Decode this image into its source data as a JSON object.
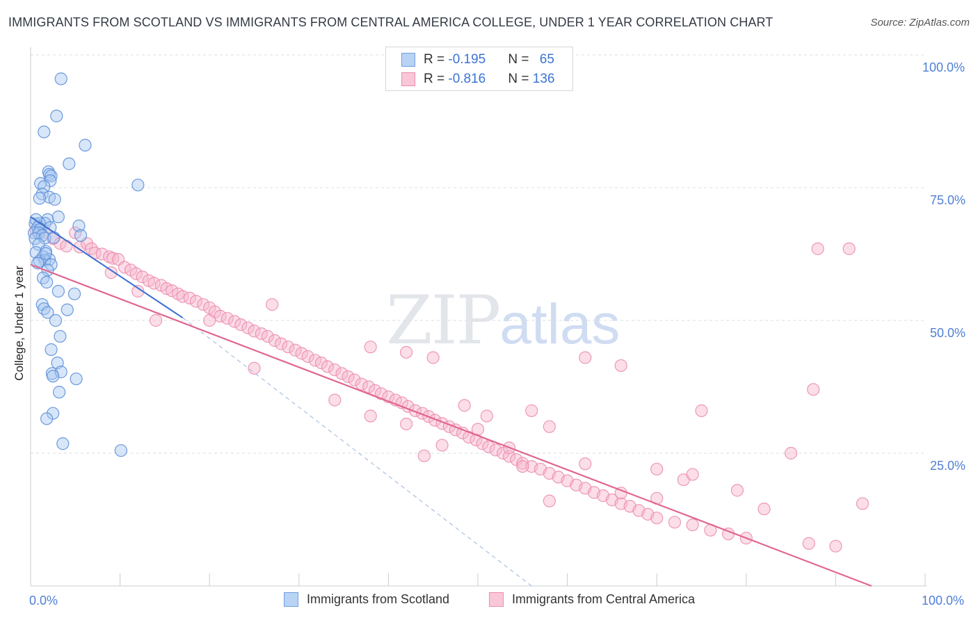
{
  "header": {
    "title": "IMMIGRANTS FROM SCOTLAND VS IMMIGRANTS FROM CENTRAL AMERICA COLLEGE, UNDER 1 YEAR CORRELATION CHART",
    "source": "Source: ZipAtlas.com"
  },
  "watermark": {
    "zip": "ZIP",
    "atlas": "atlas"
  },
  "legend": {
    "rows": [
      {
        "r_label": "R = ",
        "r_value": "-0.195",
        "n_label": "N = ",
        "n_value": "65",
        "color": "#6e9fe0"
      },
      {
        "r_label": "R = ",
        "r_value": "-0.816",
        "n_label": "N = ",
        "n_value": "136",
        "color": "#ec8db0"
      }
    ]
  },
  "bottom_legend": {
    "scotland": "Immigrants from Scotland",
    "central_america": "Immigrants from Central America"
  },
  "axes": {
    "ylabel": "College, Under 1 year",
    "x_left": "0.0%",
    "x_right": "100.0%",
    "y_ticks": [
      "100.0%",
      "75.0%",
      "50.0%",
      "25.0%"
    ]
  },
  "chart_data": {
    "type": "scatter",
    "xlabel": "",
    "ylabel": "College, Under 1 year",
    "xlim": [
      0,
      100
    ],
    "ylim": [
      0,
      100
    ],
    "grid": true,
    "series": [
      {
        "name": "Immigrants from Scotland",
        "color": "#6e9fe0",
        "trend": {
          "x": [
            0,
            17
          ],
          "y": [
            69.5,
            50.5
          ],
          "dashed_to": [
            56,
            0
          ]
        },
        "points": [
          [
            3.4,
            95.5
          ],
          [
            2.9,
            88.5
          ],
          [
            1.5,
            85.5
          ],
          [
            6.1,
            83.0
          ],
          [
            4.3,
            79.5
          ],
          [
            2.0,
            78.0
          ],
          [
            2.1,
            77.5
          ],
          [
            2.3,
            77.2
          ],
          [
            2.2,
            76.3
          ],
          [
            1.1,
            75.8
          ],
          [
            1.5,
            75.2
          ],
          [
            1.3,
            73.8
          ],
          [
            2.1,
            73.2
          ],
          [
            1.0,
            73.0
          ],
          [
            2.7,
            72.8
          ],
          [
            12.0,
            75.5
          ],
          [
            1.9,
            69.0
          ],
          [
            1.6,
            68.3
          ],
          [
            1.0,
            68.3
          ],
          [
            0.5,
            68.2
          ],
          [
            0.6,
            69.0
          ],
          [
            0.8,
            67.5
          ],
          [
            1.1,
            67.2
          ],
          [
            2.2,
            67.5
          ],
          [
            3.1,
            69.5
          ],
          [
            0.4,
            66.5
          ],
          [
            0.9,
            66.5
          ],
          [
            1.3,
            66.0
          ],
          [
            0.5,
            65.4
          ],
          [
            5.4,
            67.8
          ],
          [
            5.6,
            66.0
          ],
          [
            1.6,
            65.5
          ],
          [
            2.6,
            65.6
          ],
          [
            0.9,
            64.3
          ],
          [
            1.7,
            63.0
          ],
          [
            0.6,
            62.8
          ],
          [
            1.4,
            62.0
          ],
          [
            2.1,
            61.5
          ],
          [
            1.6,
            61.3
          ],
          [
            1.0,
            61.2
          ],
          [
            1.7,
            62.6
          ],
          [
            2.3,
            60.5
          ],
          [
            0.8,
            60.8
          ],
          [
            1.9,
            59.5
          ],
          [
            1.4,
            58.0
          ],
          [
            1.8,
            57.2
          ],
          [
            3.1,
            55.5
          ],
          [
            4.9,
            55.0
          ],
          [
            1.3,
            53.0
          ],
          [
            1.5,
            52.2
          ],
          [
            4.1,
            52.0
          ],
          [
            1.9,
            51.5
          ],
          [
            2.8,
            50.0
          ],
          [
            3.3,
            47.0
          ],
          [
            2.3,
            44.5
          ],
          [
            3.0,
            42.0
          ],
          [
            2.4,
            40.0
          ],
          [
            3.4,
            40.3
          ],
          [
            2.5,
            39.5
          ],
          [
            5.1,
            39.0
          ],
          [
            3.2,
            36.5
          ],
          [
            2.5,
            32.5
          ],
          [
            1.8,
            31.5
          ],
          [
            3.6,
            26.8
          ],
          [
            10.1,
            25.5
          ]
        ]
      },
      {
        "name": "Immigrants from Central America",
        "color": "#ec8db0",
        "trend": {
          "x": [
            0,
            94
          ],
          "y": [
            60.5,
            0
          ]
        },
        "points": [
          [
            0.6,
            67.0
          ],
          [
            1.6,
            66.6
          ],
          [
            2.5,
            65.4
          ],
          [
            3.3,
            64.5
          ],
          [
            4.0,
            64.0
          ],
          [
            5.5,
            63.8
          ],
          [
            6.3,
            64.5
          ],
          [
            6.8,
            63.5
          ],
          [
            7.2,
            62.7
          ],
          [
            8.0,
            62.5
          ],
          [
            8.8,
            62.0
          ],
          [
            9.2,
            61.7
          ],
          [
            9.8,
            61.5
          ],
          [
            10.5,
            60.0
          ],
          [
            11.2,
            59.5
          ],
          [
            11.8,
            58.8
          ],
          [
            12.5,
            58.2
          ],
          [
            13.2,
            57.5
          ],
          [
            13.8,
            57.0
          ],
          [
            14.6,
            56.6
          ],
          [
            15.2,
            56.0
          ],
          [
            15.8,
            55.6
          ],
          [
            16.5,
            55.0
          ],
          [
            17.0,
            54.5
          ],
          [
            17.8,
            54.2
          ],
          [
            18.5,
            53.6
          ],
          [
            19.3,
            53.0
          ],
          [
            20.0,
            52.4
          ],
          [
            20.6,
            51.6
          ],
          [
            21.2,
            50.8
          ],
          [
            22.0,
            50.4
          ],
          [
            22.8,
            49.8
          ],
          [
            23.5,
            49.2
          ],
          [
            24.3,
            48.6
          ],
          [
            25.0,
            48.0
          ],
          [
            25.8,
            47.5
          ],
          [
            26.5,
            47.0
          ],
          [
            27.3,
            46.2
          ],
          [
            28.0,
            45.6
          ],
          [
            28.8,
            45.0
          ],
          [
            29.6,
            44.4
          ],
          [
            30.3,
            43.8
          ],
          [
            31.0,
            43.2
          ],
          [
            31.8,
            42.5
          ],
          [
            32.5,
            42.0
          ],
          [
            33.2,
            41.3
          ],
          [
            34.0,
            40.7
          ],
          [
            34.8,
            40.0
          ],
          [
            35.5,
            39.4
          ],
          [
            36.2,
            38.8
          ],
          [
            37.0,
            38.0
          ],
          [
            37.8,
            37.5
          ],
          [
            38.5,
            36.8
          ],
          [
            39.2,
            36.2
          ],
          [
            40.0,
            35.6
          ],
          [
            40.8,
            35.0
          ],
          [
            41.5,
            34.5
          ],
          [
            42.2,
            33.8
          ],
          [
            43.0,
            33.0
          ],
          [
            43.8,
            32.5
          ],
          [
            44.5,
            31.9
          ],
          [
            45.2,
            31.2
          ],
          [
            46.0,
            30.6
          ],
          [
            46.8,
            30.0
          ],
          [
            47.5,
            29.4
          ],
          [
            48.3,
            28.8
          ],
          [
            49.0,
            28.0
          ],
          [
            49.8,
            27.5
          ],
          [
            50.5,
            26.8
          ],
          [
            51.2,
            26.2
          ],
          [
            52.0,
            25.6
          ],
          [
            52.8,
            25.0
          ],
          [
            53.5,
            24.4
          ],
          [
            54.3,
            23.8
          ],
          [
            55.0,
            23.1
          ],
          [
            56.0,
            22.5
          ],
          [
            57.0,
            22.0
          ],
          [
            58.0,
            21.2
          ],
          [
            59.0,
            20.5
          ],
          [
            60.0,
            19.8
          ],
          [
            61.0,
            19.0
          ],
          [
            62.0,
            18.4
          ],
          [
            63.0,
            17.6
          ],
          [
            64.0,
            17.0
          ],
          [
            65.0,
            16.2
          ],
          [
            66.0,
            15.5
          ],
          [
            67.0,
            15.0
          ],
          [
            68.0,
            14.2
          ],
          [
            69.0,
            13.5
          ],
          [
            70.0,
            12.8
          ],
          [
            72.0,
            12.0
          ],
          [
            74.0,
            11.5
          ],
          [
            76.0,
            10.5
          ],
          [
            78.0,
            9.8
          ],
          [
            80.0,
            9.0
          ],
          [
            5.0,
            66.5
          ],
          [
            9.0,
            59.0
          ],
          [
            12.0,
            55.5
          ],
          [
            20.0,
            50.0
          ],
          [
            27.0,
            53.0
          ],
          [
            14.0,
            50.0
          ],
          [
            25.0,
            41.0
          ],
          [
            38.0,
            32.0
          ],
          [
            42.0,
            30.5
          ],
          [
            34.0,
            35.0
          ],
          [
            50.0,
            29.5
          ],
          [
            53.5,
            26.0
          ],
          [
            46.0,
            26.5
          ],
          [
            44.0,
            24.5
          ],
          [
            55.0,
            22.5
          ],
          [
            58.0,
            30.0
          ],
          [
            62.0,
            23.0
          ],
          [
            66.0,
            17.5
          ],
          [
            70.0,
            16.5
          ],
          [
            73.0,
            20.0
          ],
          [
            79.0,
            18.0
          ],
          [
            82.0,
            14.5
          ],
          [
            85.0,
            25.0
          ],
          [
            87.0,
            8.0
          ],
          [
            90.0,
            7.5
          ],
          [
            38.0,
            45.0
          ],
          [
            45.0,
            43.0
          ],
          [
            42.0,
            44.0
          ],
          [
            48.5,
            34.0
          ],
          [
            51.0,
            32.0
          ],
          [
            56.0,
            33.0
          ],
          [
            62.0,
            43.0
          ],
          [
            66.0,
            41.5
          ],
          [
            70.0,
            22.0
          ],
          [
            74.0,
            21.0
          ],
          [
            88.0,
            63.5
          ],
          [
            91.5,
            63.5
          ],
          [
            75.0,
            33.0
          ],
          [
            93.0,
            15.5
          ],
          [
            87.5,
            37.0
          ],
          [
            58.0,
            16.0
          ]
        ]
      }
    ]
  }
}
